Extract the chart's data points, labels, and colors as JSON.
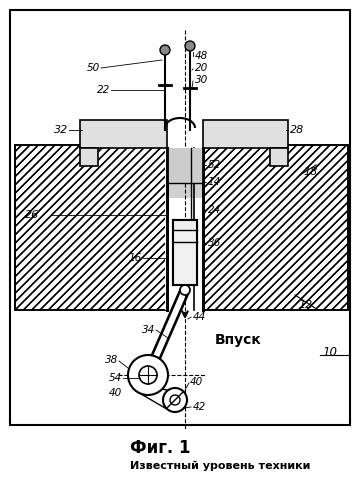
{
  "title": "Фиг. 1",
  "subtitle": "Известный уровень техники",
  "bg_color": "#ffffff"
}
